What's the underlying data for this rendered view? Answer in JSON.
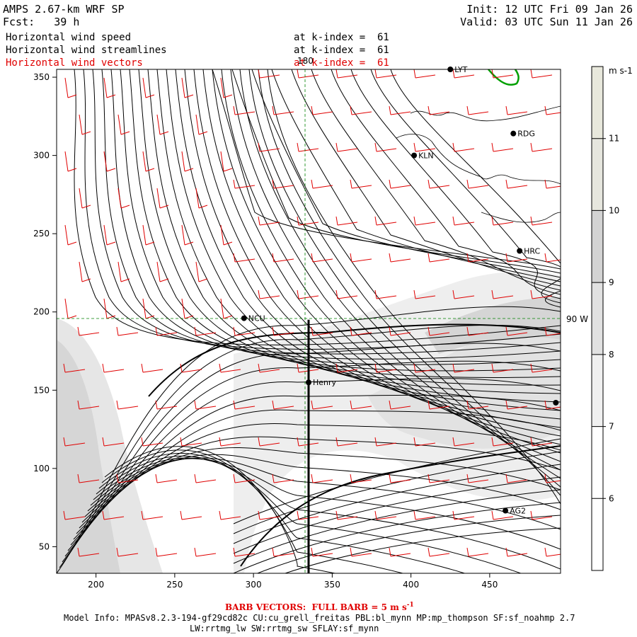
{
  "header": {
    "model": "AMPS 2.67-km WRF SP",
    "fcst_label": "Fcst:",
    "fcst_value": "39 h",
    "init": "Init: 12 UTC Fri 09 Jan 26",
    "valid": "Valid: 03 UTC Sun 11 Jan 26",
    "fields": [
      {
        "name": "Horizontal wind speed",
        "level": "at k-index =  61",
        "color": "#000000"
      },
      {
        "name": "Horizontal wind streamlines",
        "level": "at k-index =  61",
        "color": "#000000"
      },
      {
        "name": "Horizontal wind vectors",
        "level": "at k-index =  61",
        "color": "#e00000"
      }
    ]
  },
  "chart_data": {
    "type": "heatmap",
    "xlim": [
      175,
      495
    ],
    "ylim": [
      33,
      355
    ],
    "xticks": [
      200,
      250,
      300,
      350,
      400,
      450
    ],
    "yticks": [
      50,
      100,
      150,
      200,
      250,
      300,
      350
    ],
    "grid_lines": {
      "longitude": "180",
      "latitude": "90 W"
    },
    "colorbar": {
      "unit": "m s-1",
      "levels": [
        6,
        7,
        8,
        9,
        10,
        11
      ],
      "colors": [
        "#ffffff",
        "#f0f0f0",
        "#e1e1e1",
        "#d3d3d3",
        "#e6e6de",
        "#e8e8dc"
      ]
    },
    "stations": [
      {
        "name": "LYT",
        "x": 425,
        "y": 355
      },
      {
        "name": "RDG",
        "x": 465,
        "y": 314
      },
      {
        "name": "KLN",
        "x": 402,
        "y": 300
      },
      {
        "name": "HRC",
        "x": 469,
        "y": 239
      },
      {
        "name": "NCU",
        "x": 294,
        "y": 196
      },
      {
        "name": "Henry",
        "x": 335,
        "y": 155
      },
      {
        "name": "",
        "x": 492,
        "y": 142
      },
      {
        "name": "AG2",
        "x": 460,
        "y": 73
      }
    ],
    "transect": {
      "x": 335,
      "y_from": 33,
      "y_to": 195
    }
  },
  "footer": {
    "barb_note": "BARB VECTORS:  FULL BARB = 5 m s",
    "barb_exp": "-1",
    "model_info": "Model Info: MPASv8.2.3-194-gf29cd82c CU:cu_grell_freitas PBL:bl_mynn MP:mp_thompson SF:sf_noahmp 2.7",
    "model_info2": "LW:rrtmg_lw SW:rrtmg_sw SFLAY:sf_mynn"
  }
}
